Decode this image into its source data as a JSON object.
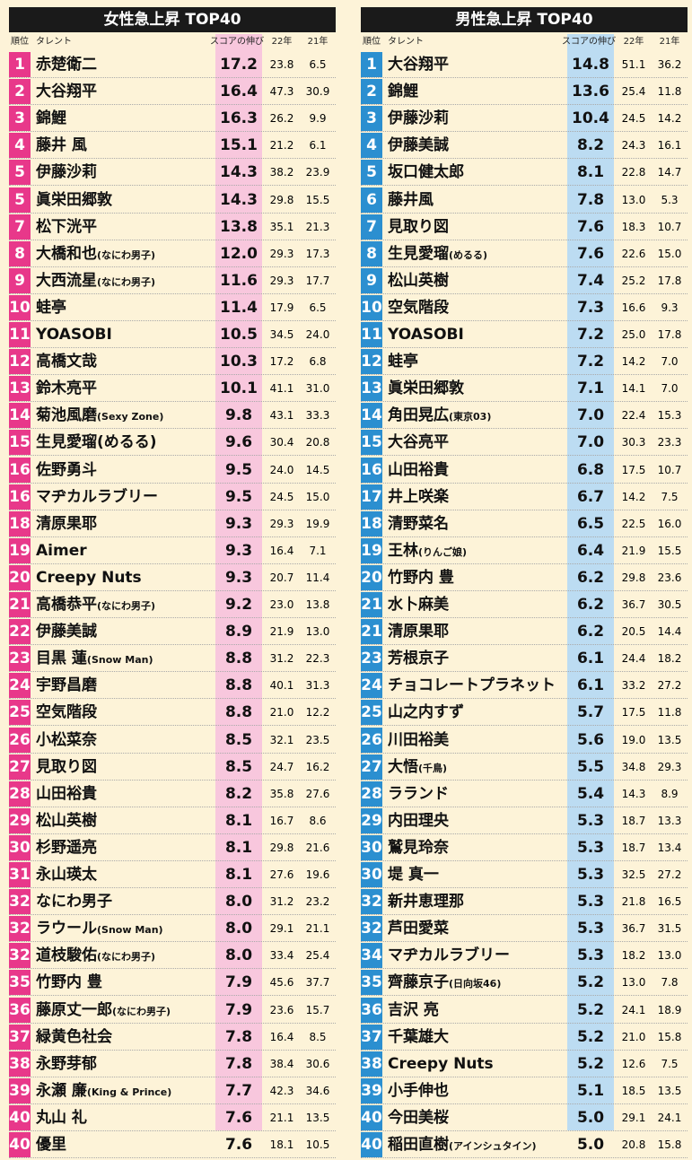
{
  "tables": [
    {
      "title": "女性急上昇 TOP40",
      "headers": [
        "順位",
        "タレント",
        "スコアの伸び",
        "22年",
        "21年"
      ],
      "rows": [
        [
          "1",
          "赤楚衛二",
          "17.2",
          "23.8",
          "6.5"
        ],
        [
          "2",
          "大谷翔平",
          "16.4",
          "47.3",
          "30.9"
        ],
        [
          "3",
          "錦鯉",
          "16.3",
          "26.2",
          "9.9"
        ],
        [
          "4",
          "藤井 風",
          "15.1",
          "21.2",
          "6.1"
        ],
        [
          "5",
          "伊藤沙莉",
          "14.3",
          "38.2",
          "23.9"
        ],
        [
          "5",
          "眞栄田郷敦",
          "14.3",
          "29.8",
          "15.5"
        ],
        [
          "7",
          "松下洸平",
          "13.8",
          "35.1",
          "21.3"
        ],
        [
          "8",
          "大橋和也",
          "12.0",
          "29.3",
          "17.3",
          "(なにわ男子)"
        ],
        [
          "9",
          "大西流星",
          "11.6",
          "29.3",
          "17.7",
          "(なにわ男子)"
        ],
        [
          "10",
          "蛙亭",
          "11.4",
          "17.9",
          "6.5"
        ],
        [
          "11",
          "YOASOBI",
          "10.5",
          "34.5",
          "24.0"
        ],
        [
          "12",
          "高橋文哉",
          "10.3",
          "17.2",
          "6.8"
        ],
        [
          "13",
          "鈴木亮平",
          "10.1",
          "41.1",
          "31.0"
        ],
        [
          "14",
          "菊池風磨",
          "9.8",
          "43.1",
          "33.3",
          "(Sexy Zone)"
        ],
        [
          "15",
          "生見愛瑠(めるる)",
          "9.6",
          "30.4",
          "20.8"
        ],
        [
          "16",
          "佐野勇斗",
          "9.5",
          "24.0",
          "14.5"
        ],
        [
          "16",
          "マヂカルラブリー",
          "9.5",
          "24.5",
          "15.0"
        ],
        [
          "18",
          "清原果耶",
          "9.3",
          "29.3",
          "19.9"
        ],
        [
          "19",
          "Aimer",
          "9.3",
          "16.4",
          "7.1"
        ],
        [
          "20",
          "Creepy Nuts",
          "9.3",
          "20.7",
          "11.4"
        ],
        [
          "21",
          "高橋恭平",
          "9.2",
          "23.0",
          "13.8",
          "(なにわ男子)"
        ],
        [
          "22",
          "伊藤美誠",
          "8.9",
          "21.9",
          "13.0"
        ],
        [
          "23",
          "目黒 蓮",
          "8.8",
          "31.2",
          "22.3",
          "(Snow Man)"
        ],
        [
          "24",
          "宇野昌磨",
          "8.8",
          "40.1",
          "31.3"
        ],
        [
          "25",
          "空気階段",
          "8.8",
          "21.0",
          "12.2"
        ],
        [
          "26",
          "小松菜奈",
          "8.5",
          "32.1",
          "23.5"
        ],
        [
          "27",
          "見取り図",
          "8.5",
          "24.7",
          "16.2"
        ],
        [
          "28",
          "山田裕貴",
          "8.2",
          "35.8",
          "27.6"
        ],
        [
          "29",
          "松山英樹",
          "8.1",
          "16.7",
          "8.6"
        ],
        [
          "30",
          "杉野遥亮",
          "8.1",
          "29.8",
          "21.6"
        ],
        [
          "31",
          "永山瑛太",
          "8.1",
          "27.6",
          "19.6"
        ],
        [
          "32",
          "なにわ男子",
          "8.0",
          "31.2",
          "23.2"
        ],
        [
          "32",
          "ラウール",
          "8.0",
          "29.1",
          "21.1",
          "(Snow Man)"
        ],
        [
          "32",
          "道枝駿佑",
          "8.0",
          "33.4",
          "25.4",
          "(なにわ男子)"
        ],
        [
          "35",
          "竹野内 豊",
          "7.9",
          "45.6",
          "37.7"
        ],
        [
          "36",
          "藤原丈一郎",
          "7.9",
          "23.6",
          "15.7",
          "(なにわ男子)"
        ],
        [
          "37",
          "緑黄色社会",
          "7.8",
          "16.4",
          "8.5"
        ],
        [
          "38",
          "永野芽郁",
          "7.8",
          "38.4",
          "30.6"
        ],
        [
          "39",
          "永瀬 廉",
          "7.7",
          "42.3",
          "34.6",
          "(King & Prince)"
        ],
        [
          "40",
          "丸山 礼",
          "7.6",
          "21.1",
          "13.5"
        ],
        [
          "40",
          "優里",
          "7.6",
          "18.1",
          "10.5"
        ]
      ]
    },
    {
      "title": "男性急上昇 TOP40",
      "headers": [
        "順位",
        "タレント",
        "スコアの伸び",
        "22年",
        "21年"
      ],
      "rows": [
        [
          "1",
          "大谷翔平",
          "14.8",
          "51.1",
          "36.2"
        ],
        [
          "2",
          "錦鯉",
          "13.6",
          "25.4",
          "11.8"
        ],
        [
          "3",
          "伊藤沙莉",
          "10.4",
          "24.5",
          "14.2"
        ],
        [
          "4",
          "伊藤美誠",
          "8.2",
          "24.3",
          "16.1"
        ],
        [
          "5",
          "坂口健太郎",
          "8.1",
          "22.8",
          "14.7"
        ],
        [
          "6",
          "藤井風",
          "7.8",
          "13.0",
          "5.3"
        ],
        [
          "7",
          "見取り図",
          "7.6",
          "18.3",
          "10.7"
        ],
        [
          "8",
          "生見愛瑠",
          "7.6",
          "22.6",
          "15.0",
          "(めるる)"
        ],
        [
          "9",
          "松山英樹",
          "7.4",
          "25.2",
          "17.8"
        ],
        [
          "10",
          "空気階段",
          "7.3",
          "16.6",
          "9.3"
        ],
        [
          "11",
          "YOASOBI",
          "7.2",
          "25.0",
          "17.8"
        ],
        [
          "12",
          "蛙亭",
          "7.2",
          "14.2",
          "7.0"
        ],
        [
          "13",
          "眞栄田郷敦",
          "7.1",
          "14.1",
          "7.0"
        ],
        [
          "14",
          "角田晃広",
          "7.0",
          "22.4",
          "15.3",
          "(東京03)"
        ],
        [
          "15",
          "大谷亮平",
          "7.0",
          "30.3",
          "23.3"
        ],
        [
          "16",
          "山田裕貴",
          "6.8",
          "17.5",
          "10.7"
        ],
        [
          "17",
          "井上咲楽",
          "6.7",
          "14.2",
          "7.5"
        ],
        [
          "18",
          "清野菜名",
          "6.5",
          "22.5",
          "16.0"
        ],
        [
          "19",
          "王林",
          "6.4",
          "21.9",
          "15.5",
          "(りんご娘)"
        ],
        [
          "20",
          "竹野内 豊",
          "6.2",
          "29.8",
          "23.6"
        ],
        [
          "21",
          "水卜麻美",
          "6.2",
          "36.7",
          "30.5"
        ],
        [
          "21",
          "清原果耶",
          "6.2",
          "20.5",
          "14.4"
        ],
        [
          "23",
          "芳根京子",
          "6.1",
          "24.4",
          "18.2"
        ],
        [
          "24",
          "チョコレートプラネット",
          "6.1",
          "33.2",
          "27.2"
        ],
        [
          "25",
          "山之内すず",
          "5.7",
          "17.5",
          "11.8"
        ],
        [
          "26",
          "川田裕美",
          "5.6",
          "19.0",
          "13.5"
        ],
        [
          "27",
          "大悟",
          "5.5",
          "34.8",
          "29.3",
          "(千鳥)"
        ],
        [
          "28",
          "ラランド",
          "5.4",
          "14.3",
          "8.9"
        ],
        [
          "29",
          "内田理央",
          "5.3",
          "18.7",
          "13.3"
        ],
        [
          "30",
          "鷲見玲奈",
          "5.3",
          "18.7",
          "13.4"
        ],
        [
          "30",
          "堤 真一",
          "5.3",
          "32.5",
          "27.2"
        ],
        [
          "32",
          "新井恵理那",
          "5.3",
          "21.8",
          "16.5"
        ],
        [
          "32",
          "芦田愛菜",
          "5.3",
          "36.7",
          "31.5"
        ],
        [
          "34",
          "マヂカルラブリー",
          "5.3",
          "18.2",
          "13.0"
        ],
        [
          "35",
          "齊藤京子",
          "5.2",
          "13.0",
          "7.8",
          "(日向坂46)"
        ],
        [
          "36",
          "吉沢 亮",
          "5.2",
          "24.1",
          "18.9"
        ],
        [
          "37",
          "千葉雄大",
          "5.2",
          "21.0",
          "15.8"
        ],
        [
          "38",
          "Creepy Nuts",
          "5.2",
          "12.6",
          "7.5"
        ],
        [
          "39",
          "小手伸也",
          "5.1",
          "18.5",
          "13.5"
        ],
        [
          "40",
          "今田美桜",
          "5.0",
          "29.1",
          "24.1"
        ],
        [
          "40",
          "稲田直樹",
          "5.0",
          "20.8",
          "15.8",
          "(アインシュタイン)"
        ]
      ]
    }
  ]
}
